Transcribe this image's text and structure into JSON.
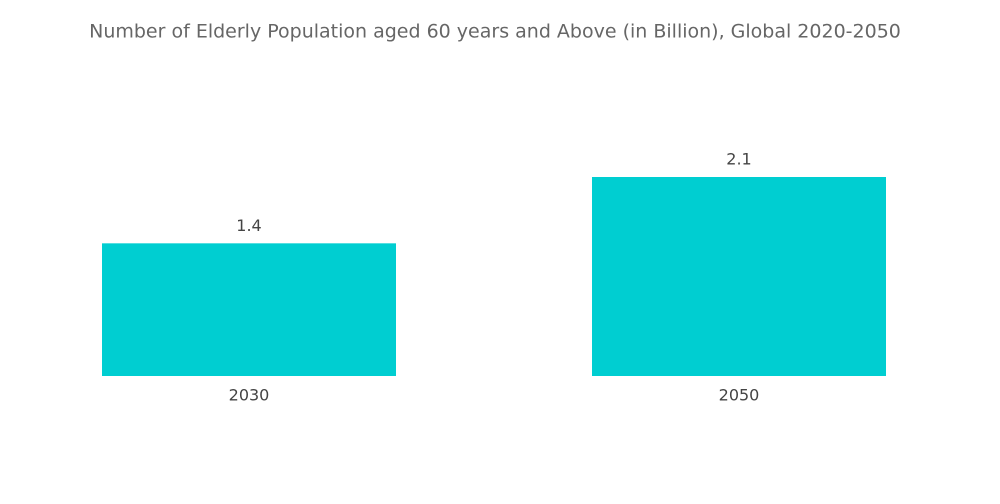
{
  "chart_data": {
    "type": "bar",
    "title": "Number of Elderly Population aged 60 years and Above (in Billion), Global 2020-2050",
    "categories": [
      "2030",
      "2050"
    ],
    "values": [
      1.4,
      2.1
    ],
    "color": "#00ced1"
  }
}
